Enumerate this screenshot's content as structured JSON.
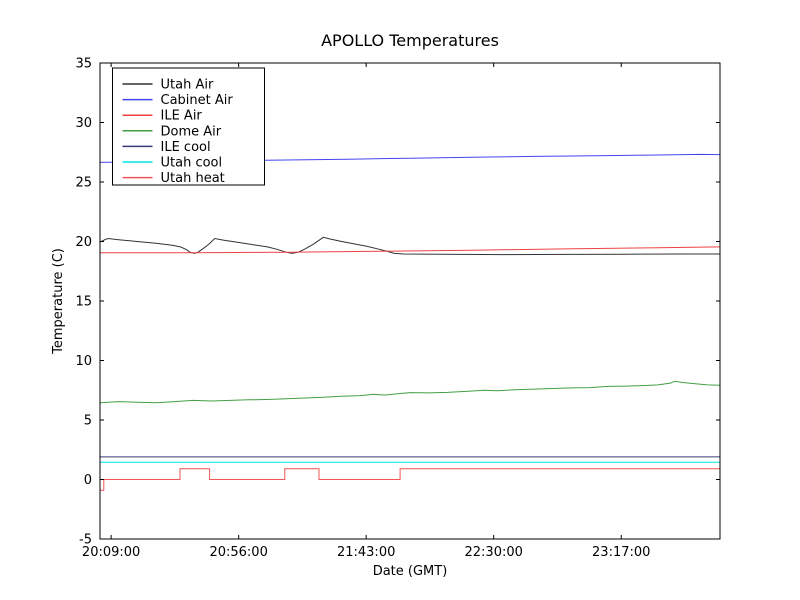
{
  "figure": {
    "background": "#ffffff",
    "axis_color": "#000000"
  },
  "chart_data": {
    "type": "line",
    "title": "APOLLO Temperatures",
    "xlabel": "Date (GMT)",
    "ylabel": "Temperature (C)",
    "grid": false,
    "legend_position": "upper-left",
    "ylim": [
      -5,
      35
    ],
    "yticks": [
      35,
      30,
      25,
      20,
      15,
      10,
      5,
      0,
      -5
    ],
    "x_unit": "minutes since 20:09:00 GMT",
    "xlim": [
      -4.1,
      224.4
    ],
    "xticks": [
      {
        "value": 0,
        "label": "20:09:00"
      },
      {
        "value": 47,
        "label": "20:56:00"
      },
      {
        "value": 94,
        "label": "21:43:00"
      },
      {
        "value": 141,
        "label": "22:30:00"
      },
      {
        "value": 188,
        "label": "23:17:00"
      }
    ],
    "series": [
      {
        "name": "Utah Air",
        "color": "#333333",
        "points": [
          [
            -4.1,
            19.95
          ],
          [
            -2.3,
            20.15
          ],
          [
            -1.1,
            20.25
          ],
          [
            2.8,
            20.15
          ],
          [
            9.6,
            20.0
          ],
          [
            16.5,
            19.85
          ],
          [
            22.2,
            19.7
          ],
          [
            25.6,
            19.55
          ],
          [
            27.9,
            19.3
          ],
          [
            29,
            19.1
          ],
          [
            30.6,
            19.0
          ],
          [
            32,
            19.1
          ],
          [
            33.6,
            19.35
          ],
          [
            35.9,
            19.75
          ],
          [
            38.2,
            20.25
          ],
          [
            41.6,
            20.1
          ],
          [
            46.2,
            19.95
          ],
          [
            51.9,
            19.75
          ],
          [
            57.6,
            19.55
          ],
          [
            61,
            19.35
          ],
          [
            64.5,
            19.1
          ],
          [
            66.7,
            19.0
          ],
          [
            69,
            19.1
          ],
          [
            71.3,
            19.35
          ],
          [
            74.7,
            19.8
          ],
          [
            78.2,
            20.35
          ],
          [
            80.9,
            20.2
          ],
          [
            85,
            20.0
          ],
          [
            89.6,
            19.8
          ],
          [
            94.2,
            19.6
          ],
          [
            98.7,
            19.35
          ],
          [
            102.2,
            19.15
          ],
          [
            104.4,
            19.0
          ],
          [
            107.9,
            18.95
          ],
          [
            121.6,
            18.93
          ],
          [
            144.4,
            18.9
          ],
          [
            167.3,
            18.92
          ],
          [
            190.1,
            18.93
          ],
          [
            213,
            18.95
          ],
          [
            224.4,
            18.95
          ]
        ]
      },
      {
        "name": "Cabinet Air",
        "color": "#4444ee",
        "points": [
          [
            -4.1,
            26.65
          ],
          [
            18.8,
            26.72
          ],
          [
            41.6,
            26.78
          ],
          [
            64.5,
            26.85
          ],
          [
            87.3,
            26.92
          ],
          [
            110.2,
            27.0
          ],
          [
            133,
            27.08
          ],
          [
            155.9,
            27.15
          ],
          [
            178.7,
            27.2
          ],
          [
            201.6,
            27.27
          ],
          [
            217.5,
            27.32
          ],
          [
            224.4,
            27.3
          ]
        ]
      },
      {
        "name": "ILE Air",
        "color": "#ee4242",
        "points": [
          [
            -4.1,
            19.05
          ],
          [
            30.2,
            19.05
          ],
          [
            64.5,
            19.1
          ],
          [
            98.7,
            19.18
          ],
          [
            133,
            19.27
          ],
          [
            167.3,
            19.38
          ],
          [
            201.6,
            19.48
          ],
          [
            224.4,
            19.55
          ]
        ]
      },
      {
        "name": "Dome Air",
        "color": "#44a044",
        "points": [
          [
            -4.1,
            6.45
          ],
          [
            2.8,
            6.55
          ],
          [
            9.6,
            6.5
          ],
          [
            16.5,
            6.45
          ],
          [
            23.3,
            6.55
          ],
          [
            30.2,
            6.65
          ],
          [
            37,
            6.6
          ],
          [
            43.9,
            6.65
          ],
          [
            50.7,
            6.7
          ],
          [
            57.6,
            6.72
          ],
          [
            64.5,
            6.78
          ],
          [
            71.3,
            6.85
          ],
          [
            78.2,
            6.92
          ],
          [
            85,
            7.0
          ],
          [
            91.9,
            7.05
          ],
          [
            96.4,
            7.15
          ],
          [
            101,
            7.1
          ],
          [
            105.6,
            7.2
          ],
          [
            110.2,
            7.3
          ],
          [
            117,
            7.28
          ],
          [
            123.9,
            7.32
          ],
          [
            130.7,
            7.4
          ],
          [
            137.6,
            7.5
          ],
          [
            142.1,
            7.45
          ],
          [
            149,
            7.55
          ],
          [
            155.9,
            7.6
          ],
          [
            162.7,
            7.65
          ],
          [
            169.6,
            7.7
          ],
          [
            176.4,
            7.72
          ],
          [
            183.3,
            7.82
          ],
          [
            190.1,
            7.85
          ],
          [
            197,
            7.9
          ],
          [
            201.6,
            7.95
          ],
          [
            206.1,
            8.1
          ],
          [
            207.7,
            8.25
          ],
          [
            210.7,
            8.15
          ],
          [
            215.3,
            8.05
          ],
          [
            219.8,
            7.95
          ],
          [
            224.4,
            7.92
          ]
        ]
      },
      {
        "name": "ILE cool",
        "color": "#3a3a78",
        "points": [
          [
            -4.1,
            1.9
          ],
          [
            224.4,
            1.9
          ]
        ]
      },
      {
        "name": "Utah cool",
        "color": "#00e5e5",
        "points": [
          [
            -4.1,
            1.45
          ],
          [
            224.4,
            1.45
          ]
        ]
      },
      {
        "name": "Utah heat",
        "color": "#f25555",
        "points": [
          [
            -4.1,
            -0.9
          ],
          [
            -2.7,
            -0.9
          ],
          [
            -2.7,
            0
          ],
          [
            25.4,
            0
          ],
          [
            25.4,
            0.9
          ],
          [
            36.3,
            0.9
          ],
          [
            36.3,
            0
          ],
          [
            64,
            0
          ],
          [
            64,
            0.9
          ],
          [
            76.6,
            0.9
          ],
          [
            76.6,
            0
          ],
          [
            106.5,
            0
          ],
          [
            106.5,
            0.9
          ],
          [
            224.4,
            0.9
          ]
        ]
      }
    ]
  }
}
